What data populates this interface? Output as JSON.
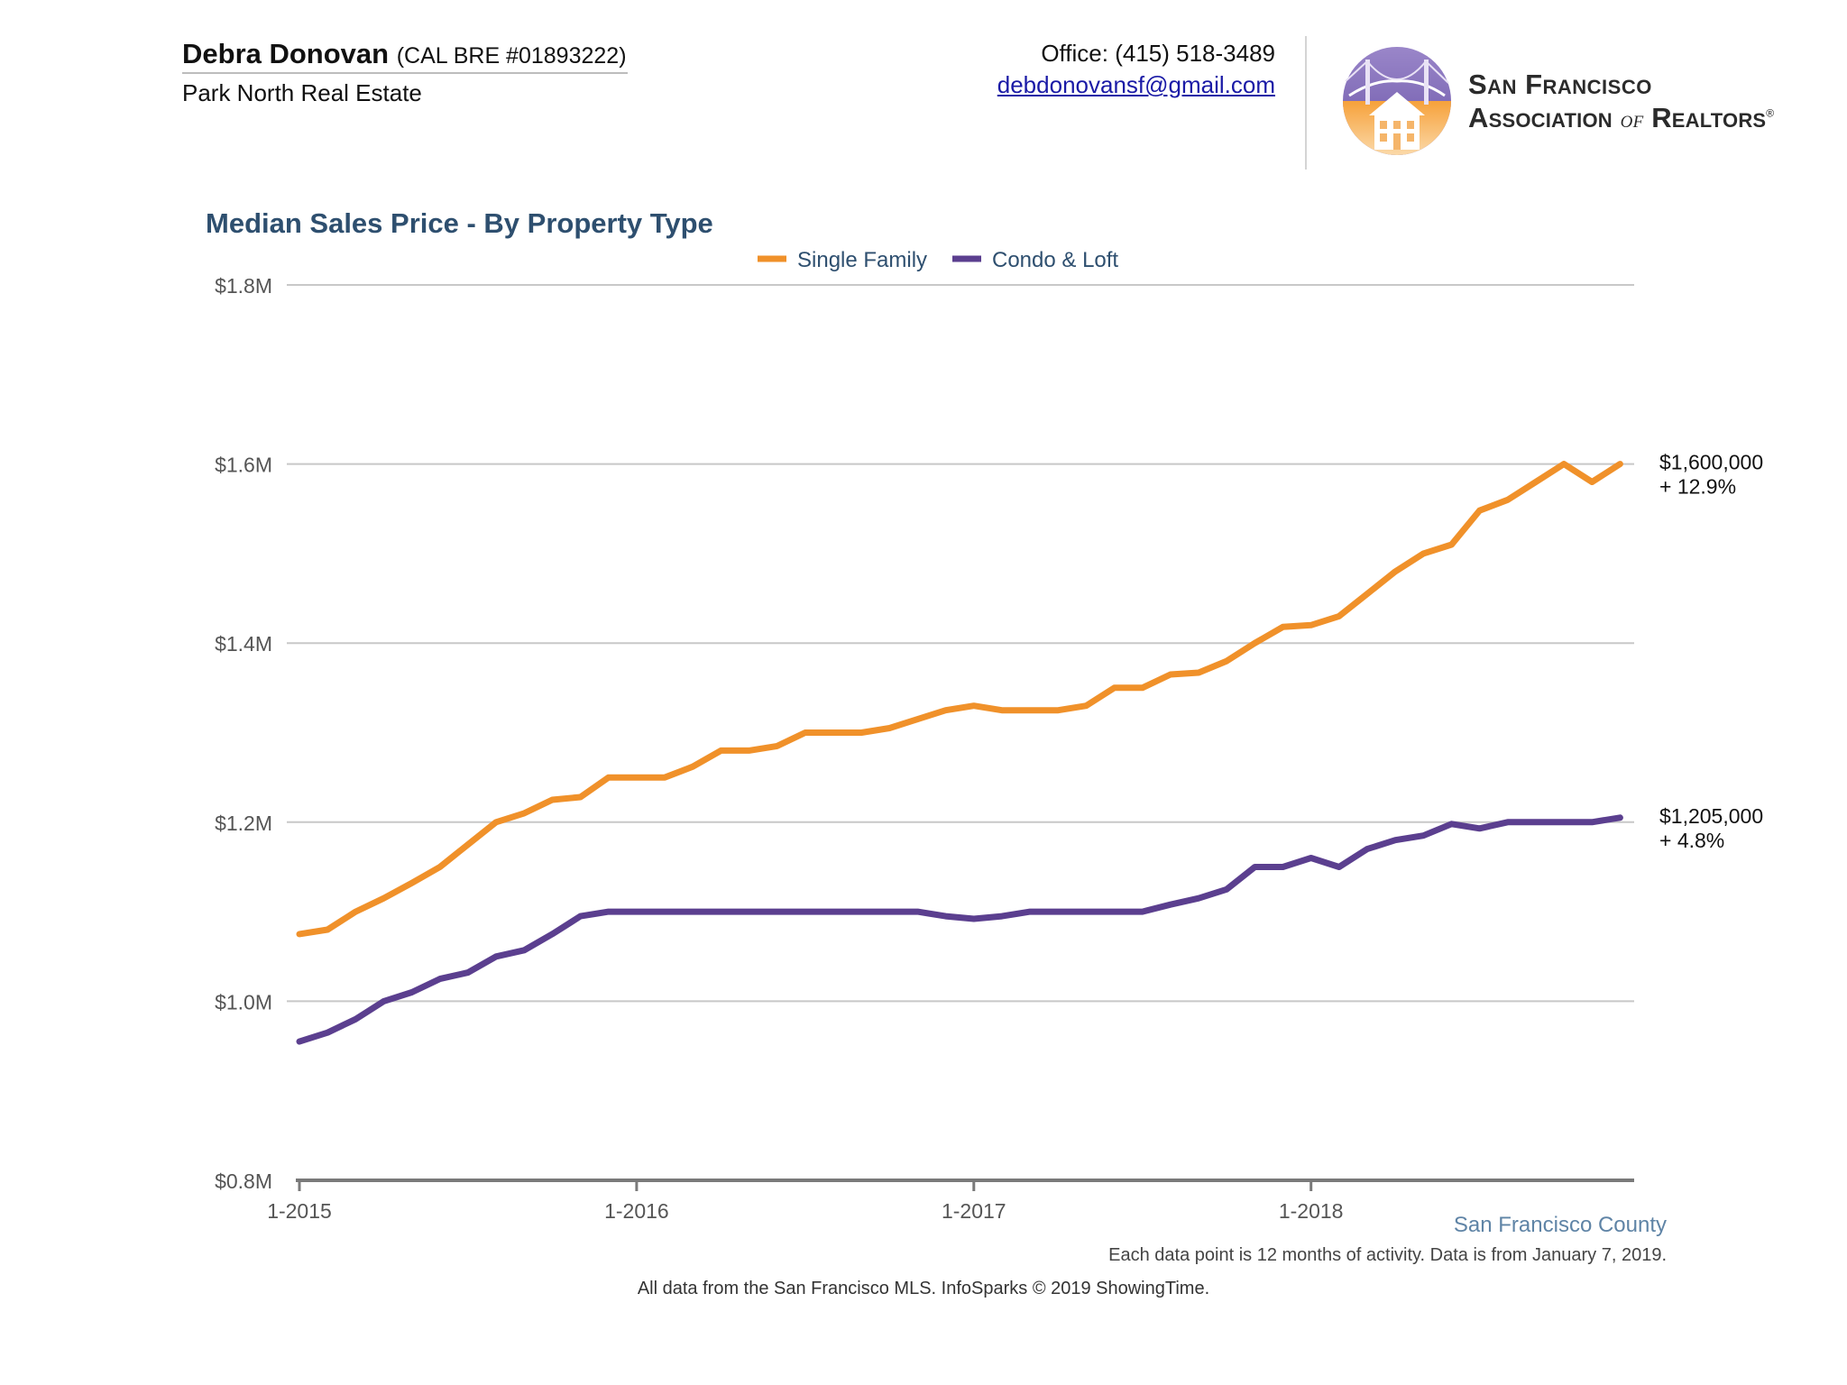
{
  "header": {
    "agent_name": "Debra Donovan",
    "agent_license": "(CAL BRE #01893222)",
    "brokerage": "Park North Real Estate",
    "office_phone": "Office: (415) 518-3489",
    "email": "debdonovansf@gmail.com",
    "logo": {
      "line1": "San Francisco",
      "line2_a": "Association ",
      "line2_of": "of",
      "line2_b": " Realtors",
      "registered": "®",
      "icon": "golden-gate-bridge-house-logo"
    }
  },
  "colors": {
    "single_family": "#f0912a",
    "condo_loft": "#5b3f8f",
    "title": "#2e4f6f",
    "grid": "#c8c8c8",
    "axis": "#7a7a7a"
  },
  "chart_data": {
    "type": "line",
    "title": "Median Sales Price - By Property Type",
    "legend_position": "top-center",
    "grid": true,
    "x_start": "2015-01",
    "x_end": "2018-12",
    "x_ticks": [
      {
        "x": "2015-01",
        "label": "1-2015"
      },
      {
        "x": "2016-01",
        "label": "1-2016"
      },
      {
        "x": "2017-01",
        "label": "1-2017"
      },
      {
        "x": "2018-01",
        "label": "1-2018"
      }
    ],
    "ylim": [
      0.8,
      1.8
    ],
    "y_ticks": [
      {
        "value": 1.8,
        "label": "$1.8M"
      },
      {
        "value": 1.6,
        "label": "$1.6M"
      },
      {
        "value": 1.4,
        "label": "$1.4M"
      },
      {
        "value": 1.2,
        "label": "$1.2M"
      },
      {
        "value": 1.0,
        "label": "$1.0M"
      },
      {
        "value": 0.8,
        "label": "$0.8M"
      }
    ],
    "y_unit": "millions of dollars",
    "series": [
      {
        "name": "Single Family",
        "color": "#f0912a",
        "end_value_label": "$1,600,000",
        "end_change_label": "+ 12.9%",
        "values": [
          1.075,
          1.08,
          1.1,
          1.115,
          1.132,
          1.15,
          1.175,
          1.2,
          1.21,
          1.225,
          1.228,
          1.25,
          1.25,
          1.25,
          1.262,
          1.28,
          1.28,
          1.285,
          1.3,
          1.3,
          1.3,
          1.305,
          1.315,
          1.325,
          1.33,
          1.325,
          1.325,
          1.325,
          1.33,
          1.35,
          1.35,
          1.365,
          1.367,
          1.38,
          1.4,
          1.418,
          1.42,
          1.43,
          1.455,
          1.48,
          1.5,
          1.51,
          1.548,
          1.56,
          1.58,
          1.6,
          1.58,
          1.6
        ]
      },
      {
        "name": "Condo & Loft",
        "color": "#5b3f8f",
        "end_value_label": "$1,205,000",
        "end_change_label": "+ 4.8%",
        "values": [
          0.955,
          0.965,
          0.98,
          1.0,
          1.01,
          1.025,
          1.032,
          1.05,
          1.057,
          1.075,
          1.095,
          1.1,
          1.1,
          1.1,
          1.1,
          1.1,
          1.1,
          1.1,
          1.1,
          1.1,
          1.1,
          1.1,
          1.1,
          1.095,
          1.092,
          1.095,
          1.1,
          1.1,
          1.1,
          1.1,
          1.1,
          1.108,
          1.115,
          1.125,
          1.15,
          1.15,
          1.16,
          1.15,
          1.17,
          1.18,
          1.185,
          1.198,
          1.193,
          1.2,
          1.2,
          1.2,
          1.2,
          1.205
        ]
      }
    ]
  },
  "footer": {
    "region": "San Francisco County",
    "note": "Each data point is 12 months of activity. Data is from January 7, 2019.",
    "source": "All data from the San Francisco MLS. InfoSparks © 2019 ShowingTime."
  }
}
